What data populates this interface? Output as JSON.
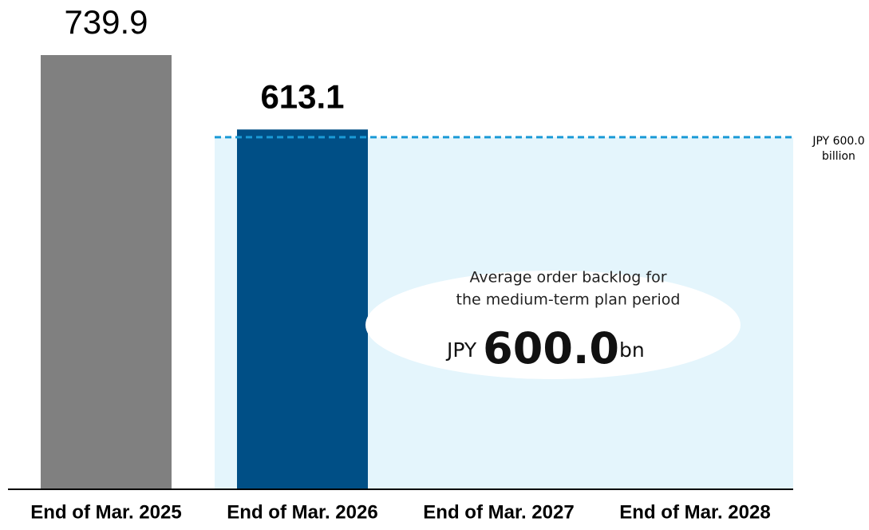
{
  "chart_data": {
    "type": "bar",
    "categories": [
      "End of Mar. 2025",
      "End of Mar. 2026",
      "End of Mar. 2027",
      "End of Mar. 2028"
    ],
    "values": [
      739.9,
      613.1,
      null,
      null
    ],
    "colors": [
      "#808080",
      "#004f86",
      null,
      null
    ],
    "reference_line": {
      "value": 600,
      "color": "#1a9ad6",
      "fill": "#e4f5fc",
      "label": [
        "JPY 600.0",
        "billion"
      ]
    },
    "annotation": {
      "lines": [
        "Average order backlog for",
        "the medium-term plan period"
      ],
      "prefix": "JPY",
      "amount": "600.0",
      "suffix": "bn"
    }
  }
}
